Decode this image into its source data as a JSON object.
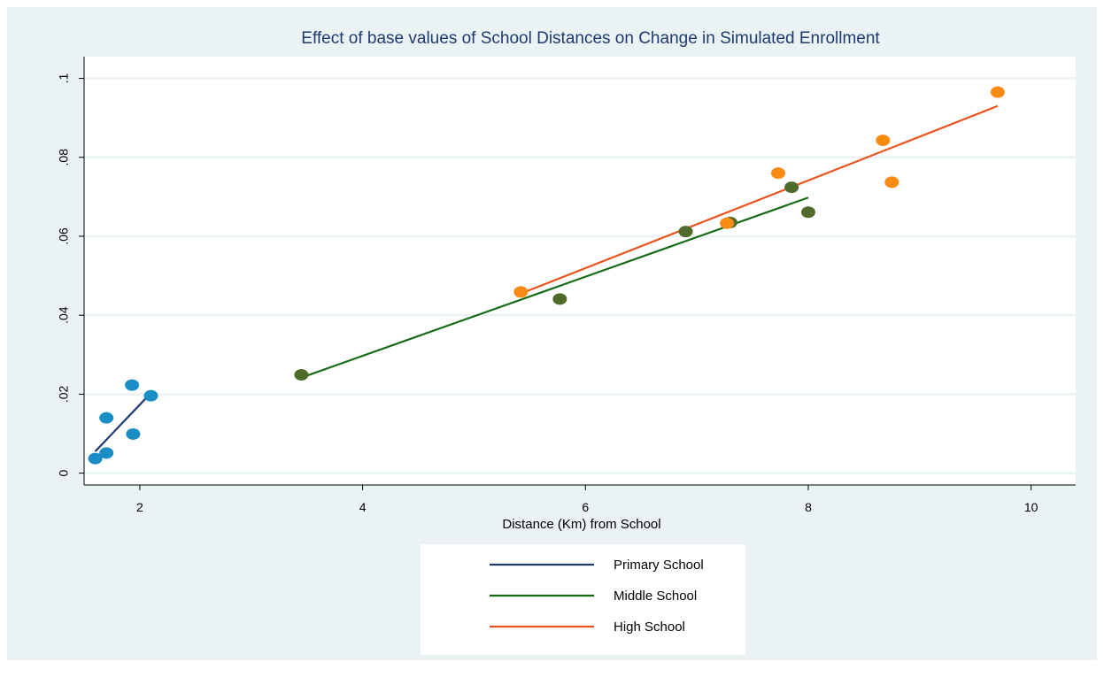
{
  "chart_data": {
    "type": "scatter",
    "title": "Effect of base values of School Distances on Change in Simulated Enrollment",
    "xlabel": "Distance (Km) from School",
    "ylabel": "",
    "xlim": [
      1.5,
      10.4
    ],
    "ylim": [
      -0.003,
      0.1055
    ],
    "x_ticks": [
      2,
      4,
      6,
      8,
      10
    ],
    "x_tick_labels": [
      "2",
      "4",
      "6",
      "8",
      "10"
    ],
    "y_ticks": [
      0,
      0.02,
      0.04,
      0.06,
      0.08,
      0.1
    ],
    "y_tick_labels": [
      "0",
      ".02",
      ".04",
      ".06",
      ".08",
      ".1"
    ],
    "grid": "horizontal",
    "legend_placement": "bottom-center",
    "series": [
      {
        "name": "Primary School",
        "line_color": "#1f3b6e",
        "marker_color": "#1a8ec4",
        "points": [
          {
            "x": 1.6,
            "y": 0.0037
          },
          {
            "x": 1.7,
            "y": 0.0051
          },
          {
            "x": 1.7,
            "y": 0.014
          },
          {
            "x": 1.93,
            "y": 0.0223
          },
          {
            "x": 1.94,
            "y": 0.0099
          },
          {
            "x": 2.1,
            "y": 0.0196
          }
        ],
        "fit": {
          "x": [
            1.6,
            2.1
          ],
          "y": [
            0.0055,
            0.0203
          ]
        }
      },
      {
        "name": "Middle School",
        "line_color": "#136b13",
        "marker_color": "#4f6b2b",
        "points": [
          {
            "x": 3.45,
            "y": 0.0249
          },
          {
            "x": 5.77,
            "y": 0.0441
          },
          {
            "x": 6.9,
            "y": 0.0612
          },
          {
            "x": 7.3,
            "y": 0.0635
          },
          {
            "x": 7.85,
            "y": 0.0724
          },
          {
            "x": 8.0,
            "y": 0.0661
          }
        ],
        "fit": {
          "x": [
            3.45,
            8.0
          ],
          "y": [
            0.0242,
            0.0698
          ]
        }
      },
      {
        "name": "High School",
        "line_color": "#e8541e",
        "marker_color": "#f98a12",
        "points": [
          {
            "x": 5.42,
            "y": 0.0459
          },
          {
            "x": 7.27,
            "y": 0.0633
          },
          {
            "x": 7.73,
            "y": 0.076
          },
          {
            "x": 8.67,
            "y": 0.0843
          },
          {
            "x": 8.75,
            "y": 0.0737
          },
          {
            "x": 9.7,
            "y": 0.0965
          }
        ],
        "fit": {
          "x": [
            5.42,
            9.7
          ],
          "y": [
            0.0455,
            0.093
          ]
        }
      }
    ]
  },
  "colors": {
    "background": "#eaf2f3",
    "plot_region": "#ffffff",
    "gridline": "#eaf2f3",
    "title": "#1f3b6e"
  }
}
